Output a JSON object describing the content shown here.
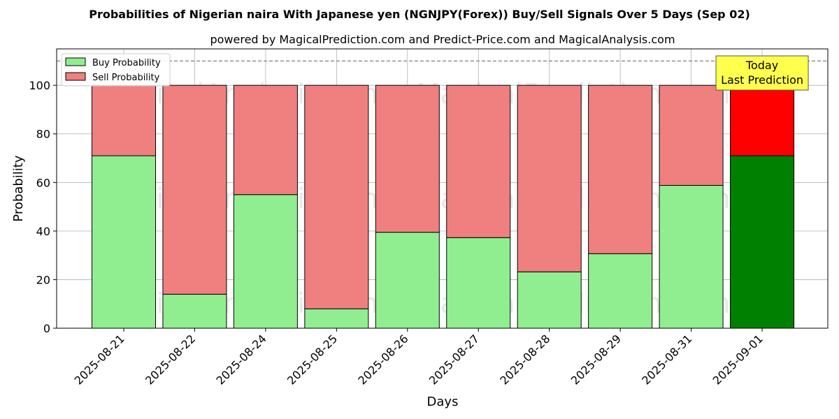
{
  "chart_data": {
    "type": "bar",
    "stacked": true,
    "title": "Probabilities of Nigerian naira With Japanese yen (NGNJPY(Forex)) Buy/Sell Signals Over 5 Days (Sep 02)",
    "subtitle": "powered by MagicalPrediction.com and Predict-Price.com and MagicalAnalysis.com",
    "xlabel": "Days",
    "ylabel": "Probability",
    "ylim": [
      0,
      115
    ],
    "yticks": [
      0,
      20,
      40,
      60,
      80,
      100
    ],
    "grid": true,
    "legend_position": "top-left",
    "categories": [
      "2025-08-21",
      "2025-08-22",
      "2025-08-24",
      "2025-08-25",
      "2025-08-26",
      "2025-08-27",
      "2025-08-28",
      "2025-08-29",
      "2025-08-31",
      "2025-09-01"
    ],
    "series": [
      {
        "name": "Buy Probability",
        "values": [
          71,
          14,
          55,
          8,
          39.5,
          37.3,
          23.2,
          30.7,
          58.8,
          71
        ],
        "color": "#90ee90",
        "highlight_color": "#008000"
      },
      {
        "name": "Sell Probability",
        "values": [
          29,
          86,
          45,
          92,
          60.5,
          62.7,
          76.8,
          69.3,
          41.2,
          29
        ],
        "color": "#f08080",
        "highlight_color": "#ff0000"
      }
    ],
    "highlight_index": 9,
    "reference_line": {
      "y": 110,
      "style": "dashed",
      "color": "#808080"
    },
    "annotation": {
      "lines": [
        "Today",
        "Last Prediction"
      ],
      "background": "#ffff4d"
    },
    "watermarks": [
      "MagicalAnalysis.com",
      "MagicalPrediction.com"
    ]
  }
}
